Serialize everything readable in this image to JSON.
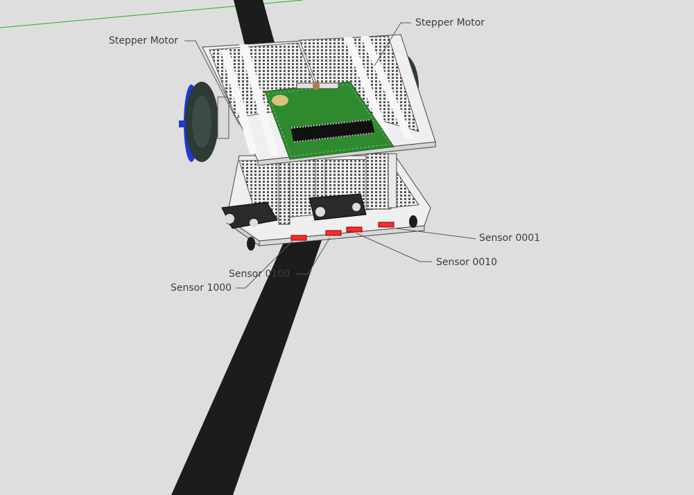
{
  "colors": {
    "background": "#dedede",
    "track": "#1c1c1c",
    "breadboard": "#f1f1f1",
    "pcb": "#2f8a2f",
    "wheel_tire": "#2d3a36",
    "wheel_hub": "#1b3bd8",
    "sensor_led": "#ff2a2a",
    "axis_line": "#19b519",
    "leader_line": "#555555"
  },
  "labels": {
    "stepper_motor_left": "Stepper Motor",
    "stepper_motor_right": "Stepper Motor",
    "sensor_0001": "Sensor 0001",
    "sensor_0010": "Sensor 0010",
    "sensor_0100": "Sensor 0100",
    "sensor_1000": "Sensor 1000"
  }
}
